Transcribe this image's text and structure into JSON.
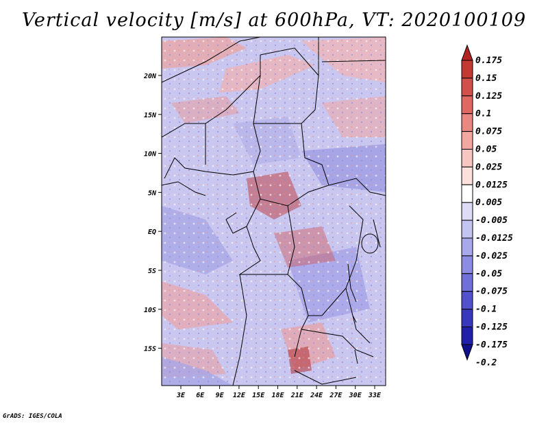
{
  "title": "Vertical velocity [m/s] at 600hPa, VT: 2020100109",
  "credit": "GrADS: IGES/COLA",
  "map": {
    "lat_labels": [
      "20N",
      "15N",
      "10N",
      "5N",
      "EQ",
      "5S",
      "10S",
      "15S"
    ],
    "lon_labels": [
      "3E",
      "6E",
      "9E",
      "12E",
      "15E",
      "18E",
      "21E",
      "24E",
      "27E",
      "30E",
      "33E"
    ]
  },
  "colorbar": {
    "labels": [
      "0.175",
      "0.15",
      "0.125",
      "0.1",
      "0.075",
      "0.05",
      "0.025",
      "0.0125",
      "0.005",
      "-0.005",
      "-0.0125",
      "-0.025",
      "-0.05",
      "-0.075",
      "-0.1",
      "-0.125",
      "-0.175",
      "-0.2"
    ],
    "colors": [
      "#b22222",
      "#c33a35",
      "#d2504a",
      "#de6962",
      "#e88880",
      "#f2a8a0",
      "#f8c6c0",
      "#fbe0dc",
      "#ffffff",
      "#dcdcf6",
      "#c4c4f0",
      "#a8a8ea",
      "#8c8ce2",
      "#7070d8",
      "#5252cc",
      "#3838bc",
      "#2020a8",
      "#10108c"
    ]
  }
}
